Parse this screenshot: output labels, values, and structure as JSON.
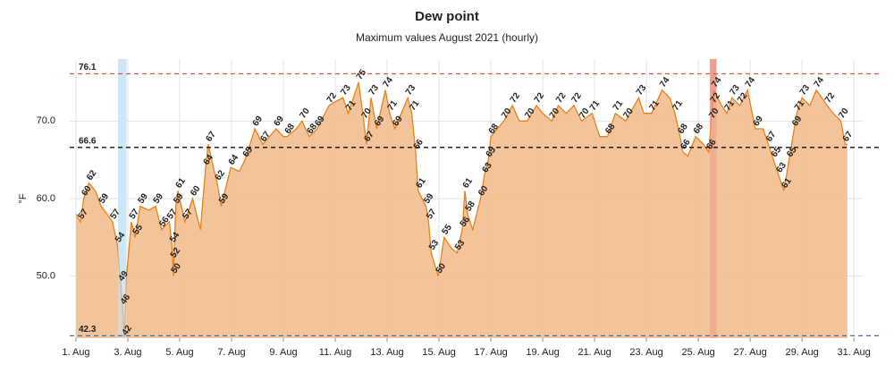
{
  "chart_data": {
    "type": "area",
    "title": "Dew point",
    "subtitle": "Maximum values August 2021 (hourly)",
    "y_label": "°F",
    "color": "#e8821f",
    "fill": "#f2bd8e",
    "xlim": [
      0.76,
      31.34
    ],
    "ylim": [
      42,
      78
    ],
    "xticks": [
      {
        "value": 1,
        "label": "1. Aug"
      },
      {
        "value": 3,
        "label": "3. Aug"
      },
      {
        "value": 5,
        "label": "5. Aug"
      },
      {
        "value": 7,
        "label": "7. Aug"
      },
      {
        "value": 9,
        "label": "9. Aug"
      },
      {
        "value": 11,
        "label": "11. Aug"
      },
      {
        "value": 13,
        "label": "13. Aug"
      },
      {
        "value": 15,
        "label": "15. Aug"
      },
      {
        "value": 17,
        "label": "17. Aug"
      },
      {
        "value": 19,
        "label": "19. Aug"
      },
      {
        "value": 21,
        "label": "21. Aug"
      },
      {
        "value": 23,
        "label": "23. Aug"
      },
      {
        "value": 25,
        "label": "25. Aug"
      },
      {
        "value": 27,
        "label": "27. Aug"
      },
      {
        "value": 29,
        "label": "29. Aug"
      },
      {
        "value": 31,
        "label": "31. Aug"
      }
    ],
    "yticks": [
      {
        "value": 50,
        "label": "50.0"
      },
      {
        "value": 60,
        "label": "60.0"
      },
      {
        "value": 70,
        "label": "70.0"
      }
    ],
    "grid": true,
    "x": [
      1.0,
      1.17,
      1.3,
      1.5,
      1.75,
      1.97,
      2.2,
      2.41,
      2.6,
      2.72,
      2.8,
      2.86,
      2.95,
      3.14,
      3.28,
      3.48,
      3.8,
      4.07,
      4.3,
      4.6,
      4.7,
      4.73,
      4.76,
      4.85,
      4.93,
      5.2,
      5.5,
      5.8,
      6.0,
      6.1,
      6.3,
      6.45,
      6.6,
      6.97,
      7.3,
      7.52,
      7.9,
      8.2,
      8.72,
      9.0,
      9.14,
      9.5,
      9.72,
      10.0,
      10.3,
      10.76,
      11.0,
      11.3,
      11.5,
      11.9,
      12.1,
      12.2,
      12.38,
      12.6,
      12.93,
      13.1,
      13.3,
      13.8,
      13.95,
      14.1,
      14.2,
      14.5,
      14.6,
      14.7,
      14.97,
      15.2,
      15.5,
      15.7,
      15.9,
      16.0,
      16.1,
      16.3,
      16.6,
      16.75,
      16.9,
      17.0,
      17.5,
      17.83,
      18.1,
      18.4,
      18.76,
      19.0,
      19.35,
      19.6,
      19.9,
      20.2,
      20.5,
      20.9,
      21.2,
      21.5,
      21.8,
      22.2,
      22.7,
      22.9,
      23.2,
      23.6,
      23.9,
      24.1,
      24.3,
      24.4,
      24.6,
      24.9,
      25.2,
      25.4,
      25.5,
      25.55,
      25.6,
      25.9,
      26.1,
      26.3,
      26.6,
      26.9,
      27.2,
      27.5,
      27.7,
      27.9,
      28.1,
      28.3,
      28.5,
      28.7,
      28.8,
      29.0,
      29.3,
      29.55,
      29.97,
      30.2,
      30.5,
      30.66,
      30.75
    ],
    "values": [
      58,
      57,
      60,
      62,
      61,
      59,
      58,
      57,
      54,
      49,
      46,
      42,
      50,
      57,
      55,
      59,
      58.5,
      59,
      56,
      57,
      54,
      52,
      50,
      59,
      61,
      57,
      60,
      56,
      64,
      67,
      64,
      62,
      59,
      64,
      63.5,
      65,
      69,
      67,
      69,
      68,
      68,
      69,
      70,
      68,
      69,
      72,
      72.5,
      73,
      71,
      75,
      70,
      67,
      73,
      69,
      74,
      71,
      69,
      73,
      71,
      66,
      61,
      59,
      57,
      53,
      50,
      55,
      53.5,
      53,
      56,
      61,
      58,
      56,
      60,
      63,
      65,
      68,
      70,
      72,
      70,
      70,
      72,
      71,
      70,
      72,
      71,
      72,
      70,
      71,
      68,
      68,
      71,
      70,
      73,
      71,
      71,
      74,
      73,
      71,
      68,
      66,
      65.5,
      68,
      67,
      66,
      70,
      72,
      74,
      72,
      71,
      73,
      72,
      74,
      69,
      69,
      67,
      65,
      63,
      61,
      65,
      69,
      71,
      73,
      72,
      74,
      72,
      71,
      70,
      67,
      67
    ],
    "data_labels": [
      {
        "x": 1.17,
        "value": 57
      },
      {
        "x": 1.3,
        "value": 60
      },
      {
        "x": 1.5,
        "value": 62
      },
      {
        "x": 1.97,
        "value": 59
      },
      {
        "x": 2.41,
        "value": 57
      },
      {
        "x": 2.6,
        "value": 54
      },
      {
        "x": 2.72,
        "value": 49
      },
      {
        "x": 2.8,
        "value": 46
      },
      {
        "x": 2.86,
        "value": 42
      },
      {
        "x": 3.14,
        "value": 57
      },
      {
        "x": 3.28,
        "value": 55
      },
      {
        "x": 3.48,
        "value": 59
      },
      {
        "x": 4.07,
        "value": 59
      },
      {
        "x": 4.3,
        "value": 56
      },
      {
        "x": 4.6,
        "value": 57
      },
      {
        "x": 4.7,
        "value": 54
      },
      {
        "x": 4.73,
        "value": 52
      },
      {
        "x": 4.76,
        "value": 50
      },
      {
        "x": 4.85,
        "value": 59
      },
      {
        "x": 4.93,
        "value": 61
      },
      {
        "x": 5.2,
        "value": 57
      },
      {
        "x": 5.5,
        "value": 60
      },
      {
        "x": 6.0,
        "value": 64
      },
      {
        "x": 6.1,
        "value": 67
      },
      {
        "x": 6.45,
        "value": 62
      },
      {
        "x": 6.6,
        "value": 59
      },
      {
        "x": 6.97,
        "value": 64
      },
      {
        "x": 7.52,
        "value": 65
      },
      {
        "x": 7.9,
        "value": 69
      },
      {
        "x": 8.2,
        "value": 67
      },
      {
        "x": 8.72,
        "value": 69
      },
      {
        "x": 9.14,
        "value": 68
      },
      {
        "x": 9.72,
        "value": 70
      },
      {
        "x": 10.0,
        "value": 68
      },
      {
        "x": 10.3,
        "value": 69
      },
      {
        "x": 10.76,
        "value": 72
      },
      {
        "x": 11.3,
        "value": 73
      },
      {
        "x": 11.5,
        "value": 71
      },
      {
        "x": 11.9,
        "value": 75
      },
      {
        "x": 12.1,
        "value": 70
      },
      {
        "x": 12.2,
        "value": 67
      },
      {
        "x": 12.38,
        "value": 73
      },
      {
        "x": 12.6,
        "value": 69
      },
      {
        "x": 12.93,
        "value": 74
      },
      {
        "x": 13.1,
        "value": 71
      },
      {
        "x": 13.3,
        "value": 69
      },
      {
        "x": 13.8,
        "value": 73
      },
      {
        "x": 13.95,
        "value": 71
      },
      {
        "x": 14.1,
        "value": 66
      },
      {
        "x": 14.2,
        "value": 61
      },
      {
        "x": 14.5,
        "value": 59
      },
      {
        "x": 14.6,
        "value": 57
      },
      {
        "x": 14.7,
        "value": 53
      },
      {
        "x": 14.97,
        "value": 50
      },
      {
        "x": 15.2,
        "value": 55
      },
      {
        "x": 15.7,
        "value": 53
      },
      {
        "x": 15.9,
        "value": 56
      },
      {
        "x": 16.0,
        "value": 61
      },
      {
        "x": 16.1,
        "value": 58
      },
      {
        "x": 16.6,
        "value": 60
      },
      {
        "x": 16.75,
        "value": 63
      },
      {
        "x": 16.9,
        "value": 65
      },
      {
        "x": 17.0,
        "value": 68
      },
      {
        "x": 17.5,
        "value": 70
      },
      {
        "x": 17.83,
        "value": 72
      },
      {
        "x": 18.4,
        "value": 70
      },
      {
        "x": 18.76,
        "value": 72
      },
      {
        "x": 19.35,
        "value": 70
      },
      {
        "x": 19.6,
        "value": 72
      },
      {
        "x": 20.2,
        "value": 72
      },
      {
        "x": 20.5,
        "value": 70
      },
      {
        "x": 20.9,
        "value": 71
      },
      {
        "x": 21.5,
        "value": 68
      },
      {
        "x": 21.8,
        "value": 71
      },
      {
        "x": 22.2,
        "value": 70
      },
      {
        "x": 22.7,
        "value": 73
      },
      {
        "x": 23.2,
        "value": 71
      },
      {
        "x": 23.6,
        "value": 74
      },
      {
        "x": 24.1,
        "value": 71
      },
      {
        "x": 24.3,
        "value": 68
      },
      {
        "x": 24.4,
        "value": 66
      },
      {
        "x": 24.9,
        "value": 68
      },
      {
        "x": 25.4,
        "value": 66
      },
      {
        "x": 25.5,
        "value": 70
      },
      {
        "x": 25.55,
        "value": 72
      },
      {
        "x": 25.6,
        "value": 74
      },
      {
        "x": 26.1,
        "value": 71
      },
      {
        "x": 26.3,
        "value": 73
      },
      {
        "x": 26.6,
        "value": 72
      },
      {
        "x": 26.9,
        "value": 74
      },
      {
        "x": 27.2,
        "value": 69
      },
      {
        "x": 27.7,
        "value": 67
      },
      {
        "x": 27.9,
        "value": 65
      },
      {
        "x": 28.1,
        "value": 63
      },
      {
        "x": 28.3,
        "value": 61
      },
      {
        "x": 28.5,
        "value": 65
      },
      {
        "x": 28.7,
        "value": 69
      },
      {
        "x": 28.8,
        "value": 71
      },
      {
        "x": 29.0,
        "value": 73
      },
      {
        "x": 29.55,
        "value": 74
      },
      {
        "x": 29.97,
        "value": 72
      },
      {
        "x": 30.5,
        "value": 70
      },
      {
        "x": 30.66,
        "value": 67
      }
    ],
    "reference_lines": [
      {
        "value": 76.1,
        "color": "#e4513f"
      },
      {
        "value": 66.6,
        "color": "#111111"
      },
      {
        "value": 42.3,
        "color": "#4a6ea8"
      }
    ],
    "spans": [
      {
        "start": 2.62,
        "end": 2.95,
        "color": "#cde7f7"
      },
      {
        "start": 25.45,
        "end": 25.7,
        "color": "#ee9f92"
      }
    ]
  }
}
